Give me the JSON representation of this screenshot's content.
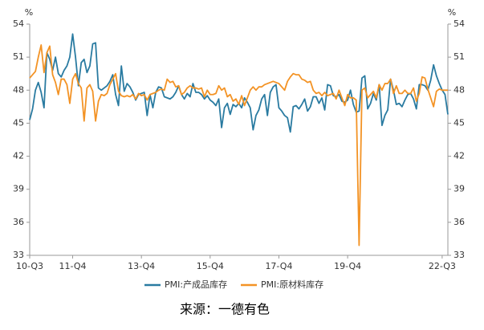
{
  "chart_data": {
    "type": "line",
    "y_unit": "%",
    "y2_unit": "%",
    "source": "来源：一德有色",
    "categories": [
      "10-Q3",
      null,
      null,
      null,
      null,
      null,
      null,
      null,
      null,
      null,
      null,
      null,
      null,
      null,
      null,
      "11-Q4",
      null,
      null,
      null,
      null,
      null,
      null,
      null,
      null,
      null,
      null,
      null,
      null,
      null,
      null,
      null,
      null,
      null,
      null,
      null,
      null,
      null,
      null,
      null,
      "13-Q4",
      null,
      null,
      null,
      null,
      null,
      null,
      null,
      null,
      null,
      null,
      null,
      null,
      null,
      null,
      null,
      null,
      null,
      null,
      null,
      null,
      null,
      null,
      null,
      "15-Q4",
      null,
      null,
      null,
      null,
      null,
      null,
      null,
      null,
      null,
      null,
      null,
      null,
      null,
      null,
      null,
      null,
      null,
      null,
      null,
      null,
      null,
      null,
      null,
      "17-Q4",
      null,
      null,
      null,
      null,
      null,
      null,
      null,
      null,
      null,
      null,
      null,
      null,
      null,
      null,
      null,
      null,
      null,
      null,
      null,
      null,
      null,
      null,
      null,
      "19-Q4",
      null,
      null,
      null,
      null,
      null,
      null,
      null,
      null,
      null,
      null,
      null,
      null,
      null,
      null,
      null,
      null,
      null,
      null,
      null,
      null,
      null,
      null,
      null,
      null,
      null,
      null,
      null,
      null,
      null,
      null,
      null,
      null,
      "22-Q3",
      null,
      null
    ],
    "series": [
      {
        "name": "PMI:产成品库存",
        "color": "#2a7ba1",
        "values": [
          45.3,
          46.3,
          48.0,
          48.7,
          47.8,
          46.4,
          51.4,
          50.8,
          49.8,
          51.0,
          49.5,
          49.2,
          49.8,
          50.2,
          51.0,
          53.1,
          51.0,
          48.4,
          50.5,
          50.8,
          49.6,
          50.2,
          52.2,
          52.3,
          48.2,
          48.0,
          48.2,
          48.4,
          48.8,
          49.4,
          47.6,
          46.6,
          50.2,
          47.9,
          48.6,
          48.3,
          47.8,
          47.1,
          47.6,
          47.7,
          47.8,
          45.7,
          47.6,
          46.4,
          47.8,
          48.3,
          48.2,
          47.4,
          47.3,
          47.2,
          47.4,
          47.8,
          48.4,
          47.6,
          47.2,
          47.7,
          47.4,
          48.6,
          47.8,
          47.8,
          47.6,
          47.2,
          47.5,
          47.1,
          46.9,
          46.6,
          47.2,
          44.6,
          46.4,
          46.8,
          45.8,
          46.7,
          46.5,
          46.8,
          46.4,
          47.3,
          46.9,
          46.4,
          44.4,
          45.7,
          46.2,
          47.2,
          47.6,
          45.7,
          47.8,
          48.3,
          48.5,
          46.4,
          46.1,
          45.7,
          45.5,
          44.2,
          46.5,
          46.6,
          46.3,
          46.7,
          47.2,
          46.1,
          46.5,
          47.4,
          47.4,
          46.8,
          47.3,
          46.2,
          48.5,
          48.4,
          47.5,
          47.4,
          47.6,
          47.0,
          46.9,
          47.1,
          48.0,
          46.7,
          46.0,
          46.1,
          49.1,
          49.3,
          46.3,
          46.8,
          47.7,
          47.1,
          48.5,
          44.8,
          45.7,
          46.2,
          49.0,
          48.0,
          46.7,
          46.8,
          46.5,
          47.1,
          47.6,
          47.7,
          47.2,
          46.3,
          48.5,
          48.5,
          48.4,
          48.0,
          48.9,
          50.3,
          49.3,
          48.6,
          48.0,
          47.6,
          45.8
        ]
      },
      {
        "name": "PMI:原材料库存",
        "color": "#f39325",
        "values": [
          49.1,
          49.4,
          49.7,
          51.0,
          52.1,
          49.6,
          51.4,
          52.0,
          49.4,
          48.7,
          47.6,
          49.0,
          49.0,
          48.5,
          46.8,
          49.0,
          49.5,
          48.6,
          48.2,
          45.2,
          48.2,
          48.5,
          47.9,
          45.2,
          47.0,
          47.6,
          47.5,
          47.7,
          48.5,
          49.0,
          49.5,
          47.9,
          47.5,
          47.4,
          47.5,
          47.4,
          47.6,
          47.2,
          47.7,
          47.5,
          47.6,
          47.1,
          47.6,
          47.7,
          47.8,
          48.0,
          48.1,
          48.0,
          49.0,
          48.7,
          48.8,
          48.3,
          48.4,
          47.6,
          47.8,
          48.2,
          48.4,
          48.2,
          48.2,
          48.1,
          48.2,
          47.4,
          48.0,
          47.6,
          47.6,
          47.7,
          48.4,
          48.0,
          48.2,
          47.4,
          47.6,
          47.0,
          47.2,
          46.7,
          47.5,
          46.6,
          47.3,
          48.0,
          48.3,
          48.0,
          48.3,
          48.3,
          48.5,
          48.6,
          48.7,
          48.8,
          48.7,
          48.6,
          48.3,
          48.0,
          48.8,
          49.2,
          49.5,
          49.4,
          49.4,
          49.0,
          48.9,
          48.7,
          48.8,
          48.0,
          47.7,
          47.8,
          47.5,
          47.8,
          47.5,
          47.6,
          47.7,
          47.2,
          48.0,
          47.3,
          46.6,
          47.6,
          47.3,
          47.3,
          47.1,
          33.9,
          48.0,
          48.2,
          47.3,
          47.6,
          47.9,
          47.3,
          48.5,
          48.0,
          48.6,
          48.6,
          49.0,
          47.7,
          48.4,
          47.7,
          47.7,
          48.0,
          47.7,
          47.7,
          48.2,
          47.0,
          47.7,
          49.2,
          49.1,
          48.1,
          47.3,
          46.5,
          47.9,
          48.1,
          48.0,
          48.0,
          48.0
        ]
      }
    ],
    "ylim": [
      33,
      54
    ],
    "yticks": [
      33,
      36,
      39,
      42,
      45,
      48,
      51,
      54
    ],
    "y2lim": [
      33,
      54
    ],
    "y2ticks": [
      33,
      36,
      39,
      42,
      45,
      48,
      51,
      54
    ],
    "legend": "bottom",
    "grid": false
  }
}
